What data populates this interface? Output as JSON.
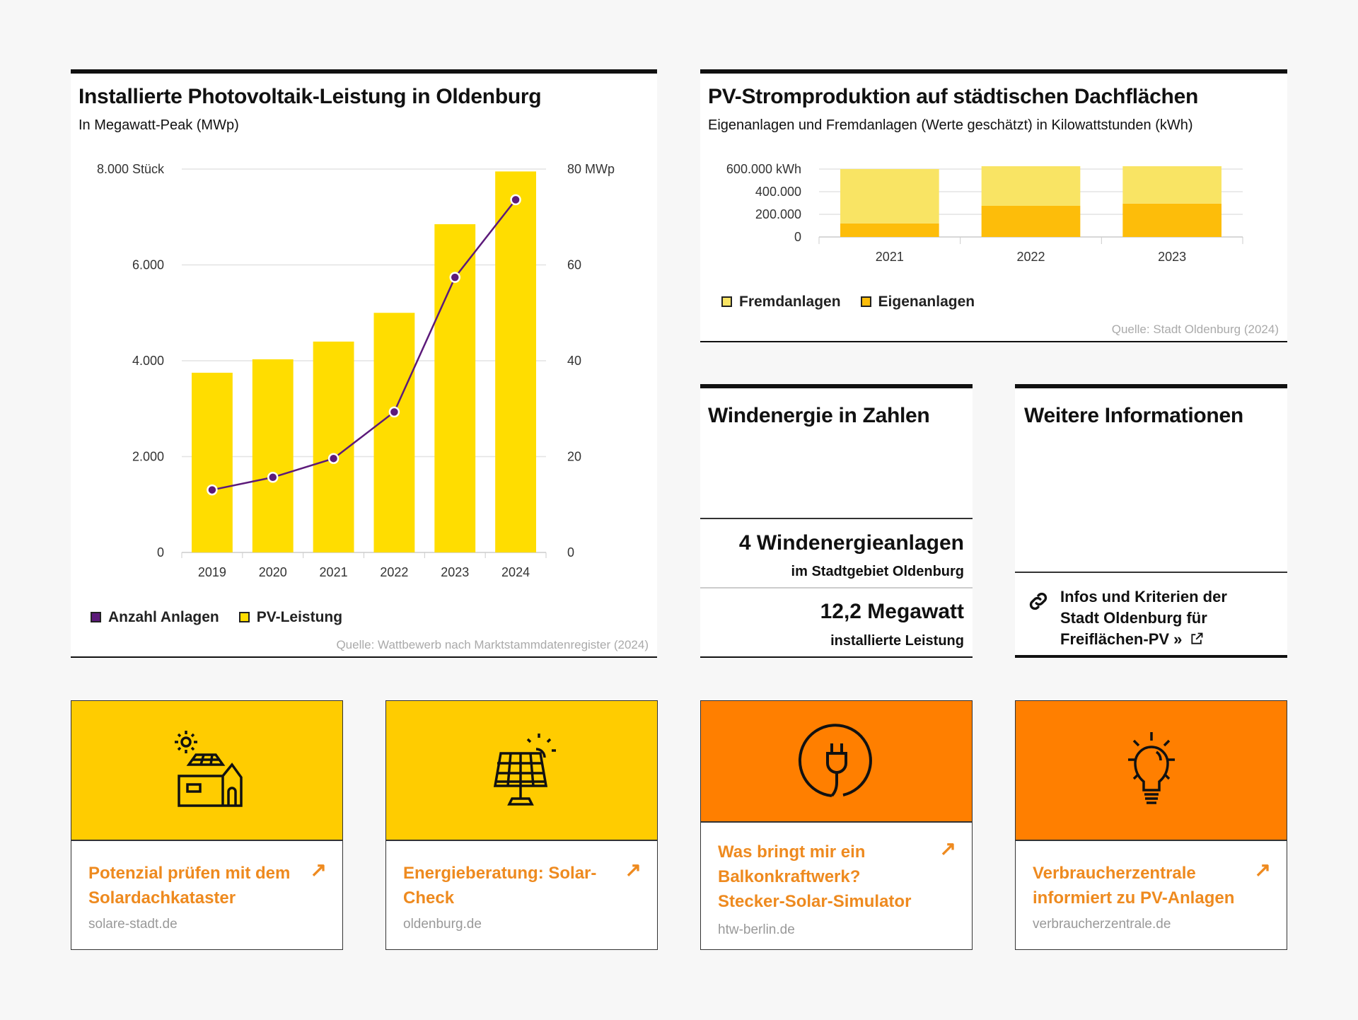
{
  "colors": {
    "yellow": "#ffdd00",
    "line": "#5c1a7a",
    "fremd": "#f9e464",
    "eigen": "#fdbd0a",
    "card_yellow": "#ffcc00",
    "card_orange": "#ff7f00",
    "link_orange": "#ee8a1f"
  },
  "pv_chart": {
    "title": "Installierte Photovoltaik-Leistung in Oldenburg",
    "subtitle": "In Megawatt-Peak (MWp)",
    "source": "Quelle: Wattbewerb nach Marktstammdatenregister (2024)",
    "legend": [
      {
        "label": "Anzahl Anlagen",
        "color": "#5c1a7a"
      },
      {
        "label": "PV-Leistung",
        "color": "#ffdd00"
      }
    ]
  },
  "roof_chart": {
    "title": "PV-Stromproduktion auf städtischen Dachflächen",
    "subtitle": "Eigenanlagen und Fremdanlagen (Werte geschätzt) in Kilowattstunden (kWh)",
    "source": "Quelle: Stadt Oldenburg (2024)",
    "legend": [
      {
        "label": "Fremdanlagen",
        "color": "#f9e464"
      },
      {
        "label": "Eigenanlagen",
        "color": "#fdbd0a"
      }
    ]
  },
  "chart_data": [
    {
      "type": "bar+line",
      "title": "Installierte Photovoltaik-Leistung in Oldenburg",
      "subtitle": "In Megawatt-Peak (MWp)",
      "categories": [
        "2019",
        "2020",
        "2021",
        "2022",
        "2023",
        "2024"
      ],
      "series": [
        {
          "name": "PV-Leistung",
          "type": "bar",
          "axis": "right",
          "values": [
            37.5,
            40.3,
            44.0,
            50.0,
            68.5,
            79.5
          ]
        },
        {
          "name": "Anzahl Anlagen",
          "type": "line",
          "axis": "left",
          "values": [
            1305,
            1568,
            1960,
            2932,
            5740,
            7360
          ]
        }
      ],
      "left_axis": {
        "ylim": [
          0,
          8000
        ],
        "ticks": [
          "0",
          "2.000",
          "4.000",
          "6.000",
          "8.000 Stück"
        ]
      },
      "right_axis": {
        "ylim": [
          0,
          80
        ],
        "ticks": [
          "0",
          "20",
          "40",
          "60",
          "80 MWp"
        ]
      },
      "grid": true,
      "legend": "bottom-left"
    },
    {
      "type": "bar",
      "stacked": true,
      "title": "PV-Stromproduktion auf städtischen Dachflächen",
      "categories": [
        "2021",
        "2022",
        "2023"
      ],
      "series": [
        {
          "name": "Eigenanlagen",
          "values": [
            120000,
            275000,
            295000
          ]
        },
        {
          "name": "Fremdanlagen",
          "values": [
            480000,
            350000,
            330000
          ]
        }
      ],
      "ylim": [
        0,
        600000
      ],
      "ticks": [
        "0",
        "200.000",
        "400.000",
        "600.000 kWh"
      ],
      "grid": true,
      "legend": "bottom-left"
    }
  ],
  "wind": {
    "title": "Windenergie in Zahlen",
    "stat1": "4 Windenergieanlagen",
    "stat1_sub": "im Stadtgebiet Oldenburg",
    "stat2": "12,2 Megawatt",
    "stat2_sub": "installierte Leistung"
  },
  "info": {
    "title": "Weitere Informationen",
    "link_lines": [
      "Infos und Kriterien der",
      "Stadt Oldenburg für",
      "Freiflächen-PV »"
    ],
    "link_icon": "chain-link-icon",
    "external_icon": "external-link-icon"
  },
  "cards": [
    {
      "title": "Potenzial prüfen mit dem Solardachkataster",
      "domain": "solare-stadt.de",
      "icon": "house-solar-icon",
      "arrow": "↗"
    },
    {
      "title": "Energieberatung: Solar-Check",
      "domain": "oldenburg.de",
      "icon": "solar-panel-icon",
      "arrow": "↗"
    },
    {
      "title": "Was bringt mir ein Balkonkraftwerk? Stecker-Solar-Simulator",
      "domain": "htw-berlin.de",
      "icon": "plug-icon",
      "arrow": "↗"
    },
    {
      "title": "Verbraucherzentrale informiert zu PV-Anlagen",
      "domain": "verbraucherzentrale.de",
      "icon": "lightbulb-icon",
      "arrow": "↗"
    }
  ]
}
